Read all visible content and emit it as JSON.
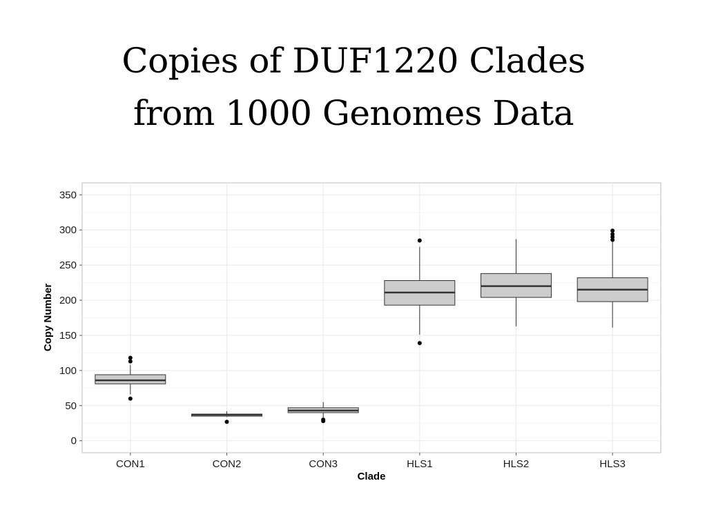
{
  "slide": {
    "title_line1": "Copies of DUF1220 Clades",
    "title_line2": "from 1000 Genomes Data"
  },
  "chart_data": {
    "type": "boxplot",
    "title": "Copies of DUF1220 Clades from 1000 Genomes Data",
    "xlabel": "Clade",
    "ylabel": "Copy Number",
    "ylim": [
      -17,
      367
    ],
    "yticks": [
      0,
      50,
      100,
      150,
      200,
      250,
      300,
      350
    ],
    "grid": true,
    "legend": "none",
    "colors": {
      "box_fill": "#cccccc",
      "box_stroke": "#333333",
      "grid": "#ebebeb",
      "panel_border": "#bdbdbd"
    },
    "categories": [
      "CON1",
      "CON2",
      "CON3",
      "HLS1",
      "HLS2",
      "HLS3"
    ],
    "boxes": [
      {
        "category": "CON1",
        "whisker_low": 66,
        "q1": 81,
        "median": 86,
        "q3": 94,
        "whisker_high": 108,
        "outliers": [
          60,
          113,
          118
        ]
      },
      {
        "category": "CON2",
        "whisker_low": 34,
        "q1": 35,
        "median": 37,
        "q3": 38,
        "whisker_high": 42,
        "outliers": [
          27
        ]
      },
      {
        "category": "CON3",
        "whisker_low": 33,
        "q1": 40,
        "median": 43,
        "q3": 47,
        "whisker_high": 55,
        "outliers": [
          28,
          30
        ]
      },
      {
        "category": "HLS1",
        "whisker_low": 151,
        "q1": 193,
        "median": 211,
        "q3": 228,
        "whisker_high": 276,
        "outliers": [
          139,
          285
        ]
      },
      {
        "category": "HLS2",
        "whisker_low": 163,
        "q1": 204,
        "median": 220,
        "q3": 238,
        "whisker_high": 287,
        "outliers": []
      },
      {
        "category": "HLS3",
        "whisker_low": 161,
        "q1": 198,
        "median": 215,
        "q3": 232,
        "whisker_high": 283,
        "outliers": [
          286,
          290,
          294,
          299
        ]
      }
    ]
  }
}
